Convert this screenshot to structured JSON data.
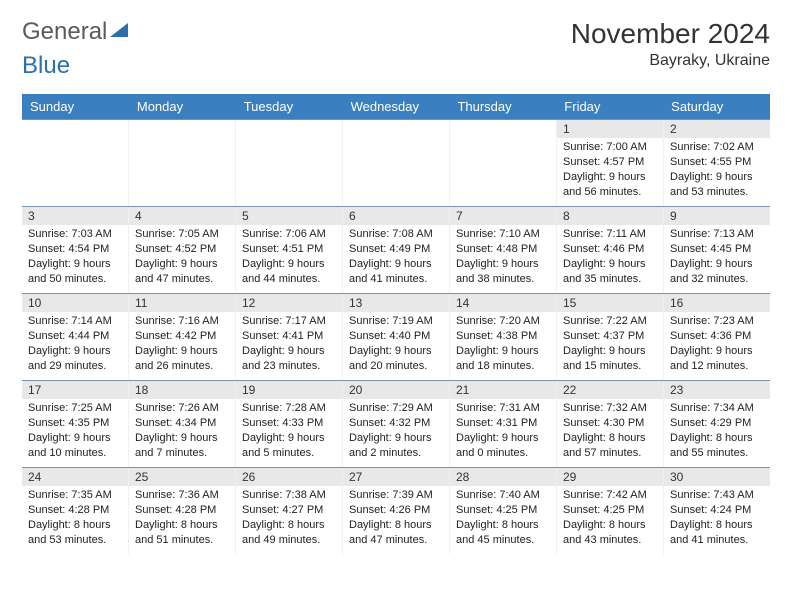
{
  "brand": {
    "part1": "General",
    "part2": "Blue"
  },
  "title": "November 2024",
  "location": "Bayraky, Ukraine",
  "colors": {
    "header_bg": "#3a7fbf",
    "header_text": "#ffffff",
    "daynum_bg": "#e8e8e8",
    "week_border": "#7a94ad",
    "logo_blue": "#2b6fab"
  },
  "day_headers": [
    "Sunday",
    "Monday",
    "Tuesday",
    "Wednesday",
    "Thursday",
    "Friday",
    "Saturday"
  ],
  "weeks": [
    [
      {
        "n": "",
        "lines": [
          "",
          "",
          "",
          ""
        ]
      },
      {
        "n": "",
        "lines": [
          "",
          "",
          "",
          ""
        ]
      },
      {
        "n": "",
        "lines": [
          "",
          "",
          "",
          ""
        ]
      },
      {
        "n": "",
        "lines": [
          "",
          "",
          "",
          ""
        ]
      },
      {
        "n": "",
        "lines": [
          "",
          "",
          "",
          ""
        ]
      },
      {
        "n": "1",
        "lines": [
          "Sunrise: 7:00 AM",
          "Sunset: 4:57 PM",
          "Daylight: 9 hours",
          "and 56 minutes."
        ]
      },
      {
        "n": "2",
        "lines": [
          "Sunrise: 7:02 AM",
          "Sunset: 4:55 PM",
          "Daylight: 9 hours",
          "and 53 minutes."
        ]
      }
    ],
    [
      {
        "n": "3",
        "lines": [
          "Sunrise: 7:03 AM",
          "Sunset: 4:54 PM",
          "Daylight: 9 hours",
          "and 50 minutes."
        ]
      },
      {
        "n": "4",
        "lines": [
          "Sunrise: 7:05 AM",
          "Sunset: 4:52 PM",
          "Daylight: 9 hours",
          "and 47 minutes."
        ]
      },
      {
        "n": "5",
        "lines": [
          "Sunrise: 7:06 AM",
          "Sunset: 4:51 PM",
          "Daylight: 9 hours",
          "and 44 minutes."
        ]
      },
      {
        "n": "6",
        "lines": [
          "Sunrise: 7:08 AM",
          "Sunset: 4:49 PM",
          "Daylight: 9 hours",
          "and 41 minutes."
        ]
      },
      {
        "n": "7",
        "lines": [
          "Sunrise: 7:10 AM",
          "Sunset: 4:48 PM",
          "Daylight: 9 hours",
          "and 38 minutes."
        ]
      },
      {
        "n": "8",
        "lines": [
          "Sunrise: 7:11 AM",
          "Sunset: 4:46 PM",
          "Daylight: 9 hours",
          "and 35 minutes."
        ]
      },
      {
        "n": "9",
        "lines": [
          "Sunrise: 7:13 AM",
          "Sunset: 4:45 PM",
          "Daylight: 9 hours",
          "and 32 minutes."
        ]
      }
    ],
    [
      {
        "n": "10",
        "lines": [
          "Sunrise: 7:14 AM",
          "Sunset: 4:44 PM",
          "Daylight: 9 hours",
          "and 29 minutes."
        ]
      },
      {
        "n": "11",
        "lines": [
          "Sunrise: 7:16 AM",
          "Sunset: 4:42 PM",
          "Daylight: 9 hours",
          "and 26 minutes."
        ]
      },
      {
        "n": "12",
        "lines": [
          "Sunrise: 7:17 AM",
          "Sunset: 4:41 PM",
          "Daylight: 9 hours",
          "and 23 minutes."
        ]
      },
      {
        "n": "13",
        "lines": [
          "Sunrise: 7:19 AM",
          "Sunset: 4:40 PM",
          "Daylight: 9 hours",
          "and 20 minutes."
        ]
      },
      {
        "n": "14",
        "lines": [
          "Sunrise: 7:20 AM",
          "Sunset: 4:38 PM",
          "Daylight: 9 hours",
          "and 18 minutes."
        ]
      },
      {
        "n": "15",
        "lines": [
          "Sunrise: 7:22 AM",
          "Sunset: 4:37 PM",
          "Daylight: 9 hours",
          "and 15 minutes."
        ]
      },
      {
        "n": "16",
        "lines": [
          "Sunrise: 7:23 AM",
          "Sunset: 4:36 PM",
          "Daylight: 9 hours",
          "and 12 minutes."
        ]
      }
    ],
    [
      {
        "n": "17",
        "lines": [
          "Sunrise: 7:25 AM",
          "Sunset: 4:35 PM",
          "Daylight: 9 hours",
          "and 10 minutes."
        ]
      },
      {
        "n": "18",
        "lines": [
          "Sunrise: 7:26 AM",
          "Sunset: 4:34 PM",
          "Daylight: 9 hours",
          "and 7 minutes."
        ]
      },
      {
        "n": "19",
        "lines": [
          "Sunrise: 7:28 AM",
          "Sunset: 4:33 PM",
          "Daylight: 9 hours",
          "and 5 minutes."
        ]
      },
      {
        "n": "20",
        "lines": [
          "Sunrise: 7:29 AM",
          "Sunset: 4:32 PM",
          "Daylight: 9 hours",
          "and 2 minutes."
        ]
      },
      {
        "n": "21",
        "lines": [
          "Sunrise: 7:31 AM",
          "Sunset: 4:31 PM",
          "Daylight: 9 hours",
          "and 0 minutes."
        ]
      },
      {
        "n": "22",
        "lines": [
          "Sunrise: 7:32 AM",
          "Sunset: 4:30 PM",
          "Daylight: 8 hours",
          "and 57 minutes."
        ]
      },
      {
        "n": "23",
        "lines": [
          "Sunrise: 7:34 AM",
          "Sunset: 4:29 PM",
          "Daylight: 8 hours",
          "and 55 minutes."
        ]
      }
    ],
    [
      {
        "n": "24",
        "lines": [
          "Sunrise: 7:35 AM",
          "Sunset: 4:28 PM",
          "Daylight: 8 hours",
          "and 53 minutes."
        ]
      },
      {
        "n": "25",
        "lines": [
          "Sunrise: 7:36 AM",
          "Sunset: 4:28 PM",
          "Daylight: 8 hours",
          "and 51 minutes."
        ]
      },
      {
        "n": "26",
        "lines": [
          "Sunrise: 7:38 AM",
          "Sunset: 4:27 PM",
          "Daylight: 8 hours",
          "and 49 minutes."
        ]
      },
      {
        "n": "27",
        "lines": [
          "Sunrise: 7:39 AM",
          "Sunset: 4:26 PM",
          "Daylight: 8 hours",
          "and 47 minutes."
        ]
      },
      {
        "n": "28",
        "lines": [
          "Sunrise: 7:40 AM",
          "Sunset: 4:25 PM",
          "Daylight: 8 hours",
          "and 45 minutes."
        ]
      },
      {
        "n": "29",
        "lines": [
          "Sunrise: 7:42 AM",
          "Sunset: 4:25 PM",
          "Daylight: 8 hours",
          "and 43 minutes."
        ]
      },
      {
        "n": "30",
        "lines": [
          "Sunrise: 7:43 AM",
          "Sunset: 4:24 PM",
          "Daylight: 8 hours",
          "and 41 minutes."
        ]
      }
    ]
  ]
}
